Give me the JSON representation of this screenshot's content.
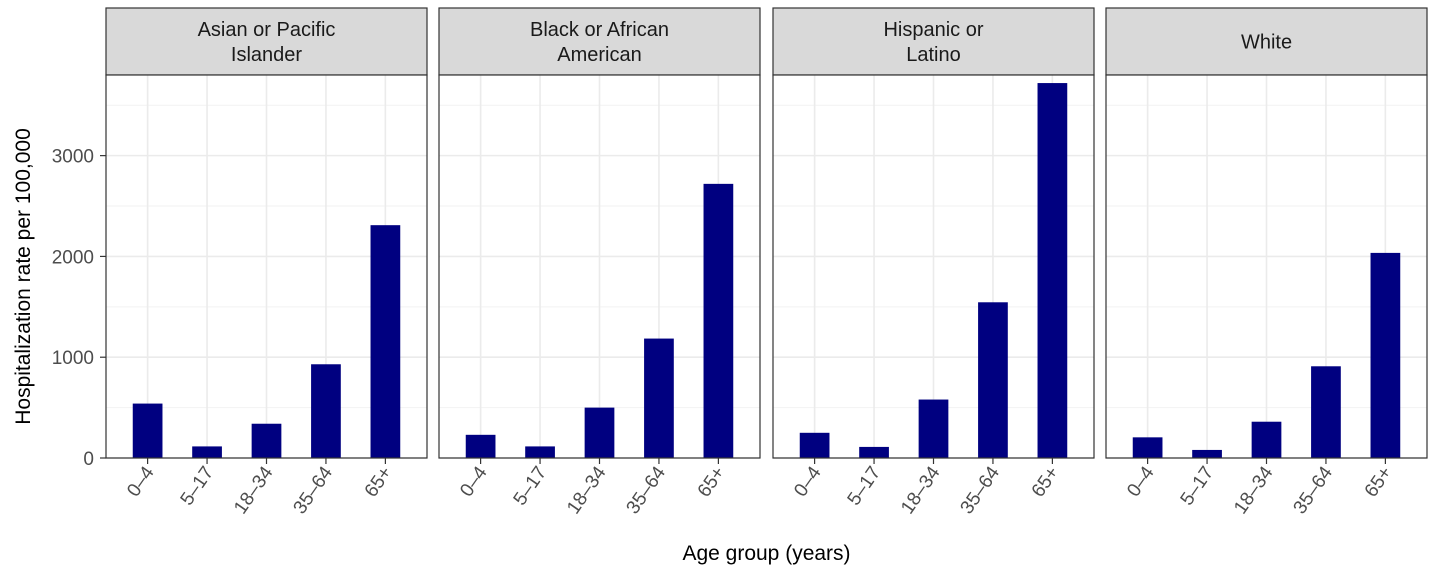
{
  "chart_data": {
    "type": "bar",
    "layout": "facets",
    "xlabel": "Age group (years)",
    "ylabel": "Hospitalization rate per 100,000",
    "categories": [
      "0–4",
      "5–17",
      "18–34",
      "35–64",
      "65+"
    ],
    "ylim": [
      0,
      3800
    ],
    "yticks": [
      0,
      1000,
      2000,
      3000
    ],
    "bar_color": "#000080",
    "panel_strip_color": "#d9d9d9",
    "grid": true,
    "panels": [
      {
        "title_lines": [
          "Asian or Pacific",
          "Islander"
        ],
        "values": [
          540,
          115,
          340,
          930,
          2310
        ]
      },
      {
        "title_lines": [
          "Black or African",
          "American"
        ],
        "values": [
          230,
          115,
          500,
          1185,
          2720
        ]
      },
      {
        "title_lines": [
          "Hispanic or",
          "Latino"
        ],
        "values": [
          250,
          110,
          580,
          1545,
          3720
        ]
      },
      {
        "title_lines": [
          "White"
        ],
        "values": [
          205,
          80,
          360,
          910,
          2035
        ]
      }
    ]
  }
}
